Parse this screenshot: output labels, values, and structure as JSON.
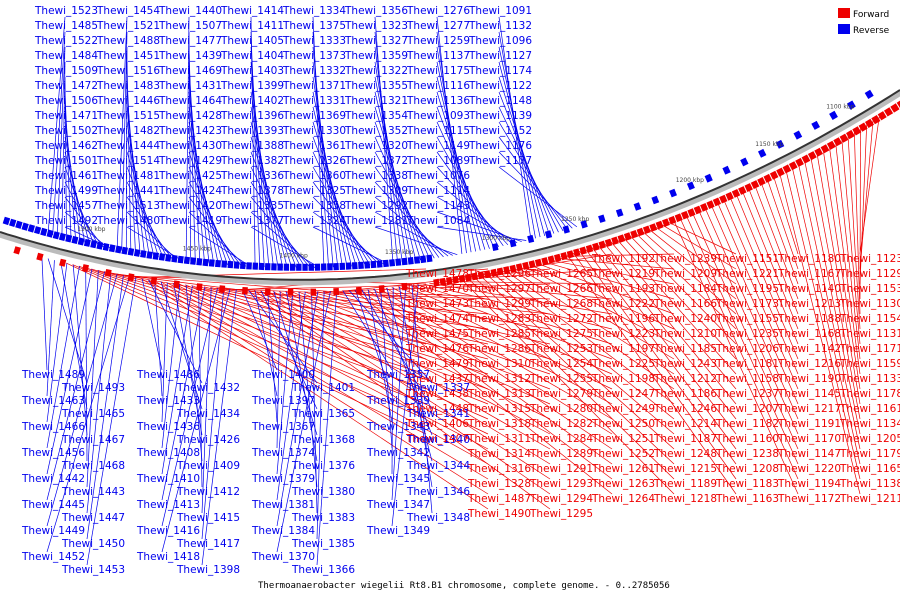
{
  "caption": "Thermoanaerobacter wiegelii Rt8.B1 chromosome, complete genome. - 0..2785056",
  "legend": [
    {
      "label": "Forward",
      "color": "#ee0000"
    },
    {
      "label": "Reverse",
      "color": "#0000ee"
    }
  ],
  "ticks": [
    "1100 kbp",
    "1150 kbp",
    "1200 kbp",
    "1250 kbp",
    "1300 kbp",
    "1350 kbp",
    "1400 kbp",
    "1450 kbp",
    "1500 kbp"
  ],
  "reverse_above": [
    "Thewi_1523",
    "Thewi_1485",
    "Thewi_1522",
    "Thewi_1484",
    "Thewi_1509",
    "Thewi_1472",
    "Thewi_1506",
    "Thewi_1471",
    "Thewi_1502",
    "Thewi_1462",
    "Thewi_1501",
    "Thewi_1461",
    "Thewi_1499",
    "Thewi_1457",
    "Thewi_1492",
    "Thewi_1454",
    "Thewi_1521",
    "Thewi_1488",
    "Thewi_1451",
    "Thewi_1516",
    "Thewi_1483",
    "Thewi_1446",
    "Thewi_1515",
    "Thewi_1482",
    "Thewi_1444",
    "Thewi_1514",
    "Thewi_1481",
    "Thewi_1441",
    "Thewi_1513",
    "Thewi_1480",
    "Thewi_1440",
    "Thewi_1507",
    "Thewi_1477",
    "Thewi_1439",
    "Thewi_1469",
    "Thewi_1431",
    "Thewi_1464",
    "Thewi_1428",
    "Thewi_1423",
    "Thewi_1430",
    "Thewi_1429",
    "Thewi_1425",
    "Thewi_1424",
    "Thewi_1420",
    "Thewi_1419",
    "Thewi_1414",
    "Thewi_1411",
    "Thewi_1405",
    "Thewi_1404",
    "Thewi_1403",
    "Thewi_1399",
    "Thewi_1402",
    "Thewi_1396",
    "Thewi_1393",
    "Thewi_1388",
    "Thewi_1382",
    "Thewi_1336",
    "Thewi_1378",
    "Thewi_1335",
    "Thewi_1377",
    "Thewi_1334",
    "Thewi_1375",
    "Thewi_1333",
    "Thewi_1373",
    "Thewi_1332",
    "Thewi_1371",
    "Thewi_1331",
    "Thewi_1369",
    "Thewi_1330",
    "Thewi_1361",
    "Thewi_1326",
    "Thewi_1360",
    "Thewi_1325",
    "Thewi_1358",
    "Thewi_1324",
    "Thewi_1356",
    "Thewi_1323",
    "Thewi_1327",
    "Thewi_1359",
    "Thewi_1322",
    "Thewi_1355",
    "Thewi_1321",
    "Thewi_1354",
    "Thewi_1352",
    "Thewi_1320",
    "Thewi_1372",
    "Thewi_1338",
    "Thewi_1309",
    "Thewi_1292",
    "Thewi_1281",
    "Thewi_1276",
    "Thewi_1277",
    "Thewi_1259",
    "Thewi_1137",
    "Thewi_1175",
    "Thewi_1116",
    "Thewi_1136",
    "Thewi_1093",
    "Thewi_1115",
    "Thewi_1149",
    "Thewi_1089",
    "Thewi_1076",
    "Thewi_1114",
    "Thewi_1143",
    "Thewi_1084",
    "Thewi_1091",
    "Thewi_1132",
    "Thewi_1096",
    "Thewi_1127",
    "Thewi_1174",
    "Thewi_1122",
    "Thewi_1148",
    "Thewi_1139",
    "Thewi_1152",
    "Thewi_1176",
    "Thewi_1177"
  ],
  "forward_right": [
    "Thewi_1123",
    "Thewi_1129",
    "Thewi_1153",
    "Thewi_1130",
    "Thewi_1154",
    "Thewi_1131",
    "Thewi_1171",
    "Thewi_1159",
    "Thewi_1133",
    "Thewi_1178",
    "Thewi_1161",
    "Thewi_1134",
    "Thewi_1205",
    "Thewi_1179",
    "Thewi_1165",
    "Thewi_1138",
    "Thewi_1211",
    "Thewi_1180",
    "Thewi_1167",
    "Thewi_1140",
    "Thewi_1213",
    "Thewi_1188",
    "Thewi_1168",
    "Thewi_1142",
    "Thewi_1216",
    "Thewi_1190",
    "Thewi_1145",
    "Thewi_1217",
    "Thewi_1191",
    "Thewi_1170",
    "Thewi_1147",
    "Thewi_1220",
    "Thewi_1194",
    "Thewi_1172",
    "Thewi_1151",
    "Thewi_1221",
    "Thewi_1195",
    "Thewi_1173",
    "Thewi_1155",
    "Thewi_1235",
    "Thewi_1206",
    "Thewi_1181",
    "Thewi_1158",
    "Thewi_1237",
    "Thewi_1207",
    "Thewi_1182",
    "Thewi_1160",
    "Thewi_1238",
    "Thewi_1208",
    "Thewi_1183",
    "Thewi_1163",
    "Thewi_1239",
    "Thewi_1209",
    "Thewi_1184",
    "Thewi_1166",
    "Thewi_1240",
    "Thewi_1210",
    "Thewi_1185",
    "Thewi_1243",
    "Thewi_1212",
    "Thewi_1186",
    "Thewi_1246",
    "Thewi_1214",
    "Thewi_1187",
    "Thewi_1248",
    "Thewi_1215",
    "Thewi_1189",
    "Thewi_1218",
    "Thewi_1192",
    "Thewi_1219",
    "Thewi_1193",
    "Thewi_1222",
    "Thewi_1196",
    "Thewi_1223",
    "Thewi_1197",
    "Thewi_1225",
    "Thewi_1198",
    "Thewi_1247",
    "Thewi_1249",
    "Thewi_1250",
    "Thewi_1251",
    "Thewi_1252",
    "Thewi_1261",
    "Thewi_1263",
    "Thewi_1264",
    "Thewi_1265",
    "Thewi_1266",
    "Thewi_1268",
    "Thewi_1272",
    "Thewi_1275",
    "Thewi_1253",
    "Thewi_1254",
    "Thewi_1255",
    "Thewi_1279",
    "Thewi_1280",
    "Thewi_1282",
    "Thewi_1284",
    "Thewi_1289",
    "Thewi_1291",
    "Thewi_1293",
    "Thewi_1294",
    "Thewi_1295",
    "Thewi_1296",
    "Thewi_1297",
    "Thewi_1299",
    "Thewi_1283",
    "Thewi_1285",
    "Thewi_1286",
    "Thewi_1310",
    "Thewi_1312",
    "Thewi_1313",
    "Thewi_1315",
    "Thewi_1318",
    "Thewi_1311",
    "Thewi_1314",
    "Thewi_1316",
    "Thewi_1328",
    "Thewi_1487",
    "Thewi_1490",
    "Thewi_1478",
    "Thewi_1470",
    "Thewi_1473",
    "Thewi_1474",
    "Thewi_1475",
    "Thewi_1476",
    "Thewi_1479",
    "Thewi_1437",
    "Thewi_1438",
    "Thewi_1448",
    "Thewi_1406",
    "Thewi_1407"
  ],
  "reverse_below": [
    "Thewi_1489",
    "Thewi_1493",
    "Thewi_1463",
    "Thewi_1465",
    "Thewi_1466",
    "Thewi_1467",
    "Thewi_1456",
    "Thewi_1468",
    "Thewi_1442",
    "Thewi_1443",
    "Thewi_1445",
    "Thewi_1447",
    "Thewi_1449",
    "Thewi_1450",
    "Thewi_1452",
    "Thewi_1453",
    "Thewi_1486",
    "Thewi_1432",
    "Thewi_1433",
    "Thewi_1434",
    "Thewi_1436",
    "Thewi_1426",
    "Thewi_1408",
    "Thewi_1409",
    "Thewi_1410",
    "Thewi_1412",
    "Thewi_1413",
    "Thewi_1415",
    "Thewi_1416",
    "Thewi_1417",
    "Thewi_1418",
    "Thewi_1398",
    "Thewi_1400",
    "Thewi_1401",
    "Thewi_1397",
    "Thewi_1365",
    "Thewi_1367",
    "Thewi_1368",
    "Thewi_1374",
    "Thewi_1376",
    "Thewi_1379",
    "Thewi_1380",
    "Thewi_1381",
    "Thewi_1383",
    "Thewi_1384",
    "Thewi_1385",
    "Thewi_1370",
    "Thewi_1366",
    "Thewi_1357",
    "Thewi_1337",
    "Thewi_1339",
    "Thewi_1341",
    "Thewi_1343",
    "Thewi_1340",
    "Thewi_1342",
    "Thewi_1344",
    "Thewi_1345",
    "Thewi_1346",
    "Thewi_1347",
    "Thewi_1348",
    "Thewi_1349"
  ]
}
